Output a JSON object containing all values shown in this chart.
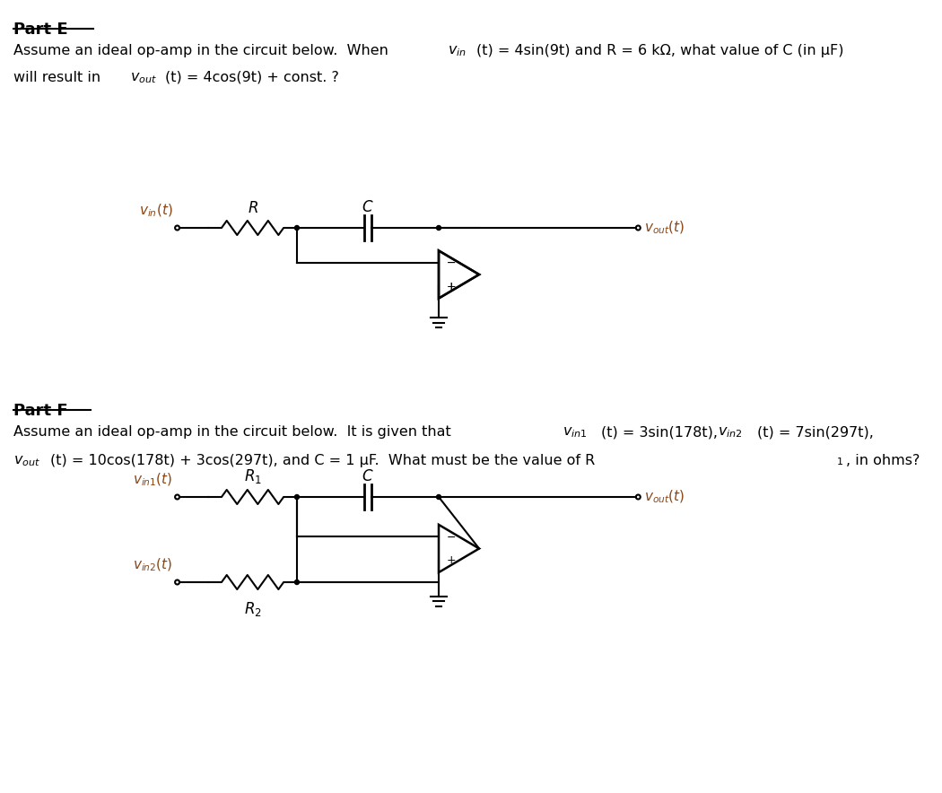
{
  "bg_color": "#ffffff",
  "part_e": {
    "title": "Part E",
    "text_line1": "Assume an ideal op-amp in the circuit below.  When v",
    "text_line1_sub1": "in",
    "text_line1_mid": "(t) = 4sin(9t) and R = 6 kΩ, what value of C (in μF)",
    "text_line2": "will result in v",
    "text_line2_sub": "out",
    "text_line2_end": "(t) = 4cos(9t) + const. ?"
  },
  "part_f": {
    "title": "Part F",
    "text_line1": "Assume an ideal op-amp in the circuit below.  It is given that v",
    "text_line1_sub1": "in1",
    "text_line1_mid1": "(t) = 3sin(178t), v",
    "text_line1_sub2": "in2",
    "text_line1_end": "(t) = 7sin(297t),",
    "text_line2": "v",
    "text_line2_sub1": "out",
    "text_line2_mid": "(t) = 10cos(178t) + 3cos(297t), and C = 1 μF.  What must be the value of R",
    "text_line2_sub2": "1",
    "text_line2_end": ", in ohms?"
  }
}
